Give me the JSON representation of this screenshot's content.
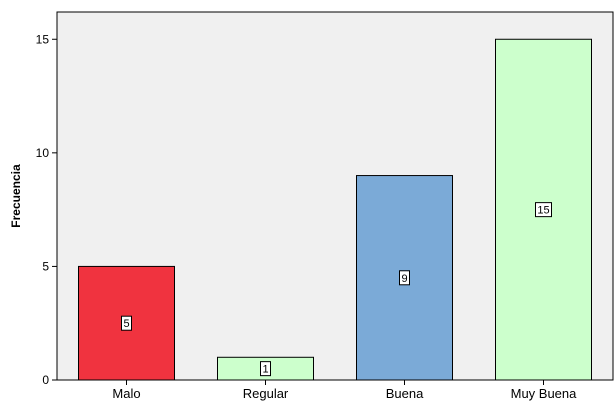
{
  "chart_data": {
    "type": "bar",
    "title": "",
    "xlabel": "",
    "ylabel": "Frecuencia",
    "categories": [
      "Malo",
      "Regular",
      "Buena",
      "Muy Buena"
    ],
    "values": [
      5,
      1,
      9,
      15
    ],
    "data_labels": [
      "5",
      "1",
      "9",
      "15"
    ],
    "colors": [
      "#f0333f",
      "#ccffcc",
      "#7baad7",
      "#ccffcc"
    ],
    "ylim": [
      0,
      16.2
    ],
    "yticks": [
      0,
      5,
      10,
      15
    ],
    "ytick_labels": [
      "0",
      "5",
      "10",
      "15"
    ],
    "grid": false,
    "plot_background": "#f0f0f0"
  }
}
